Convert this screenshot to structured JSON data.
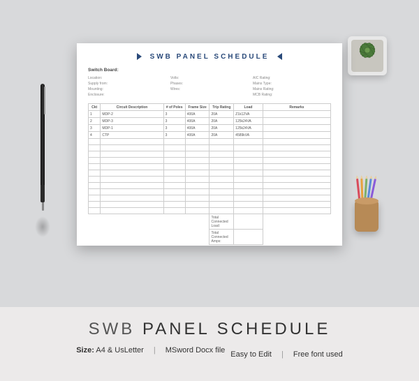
{
  "document": {
    "title": "SWB PANEL SCHEDULE",
    "switch_board_label": "Switch Board:",
    "meta": {
      "col1": [
        {
          "label": "Location:",
          "value": ""
        },
        {
          "label": "Supply from:",
          "value": ""
        },
        {
          "label": "Mounting:",
          "value": ""
        },
        {
          "label": "Enclosure:",
          "value": ""
        }
      ],
      "col2": [
        {
          "label": "Volts:",
          "value": ""
        },
        {
          "label": "Phases:",
          "value": ""
        },
        {
          "label": "Wires:",
          "value": ""
        }
      ],
      "col3": [
        {
          "label": "AIC Rating:",
          "value": ""
        },
        {
          "label": "Mains Type:",
          "value": ""
        },
        {
          "label": "Mains Rating:",
          "value": ""
        },
        {
          "label": "MCB Rating:",
          "value": ""
        }
      ]
    },
    "table": {
      "columns": [
        "Ckt",
        "Circuit Description",
        "# of Poles",
        "Frame Size",
        "Trip Rating",
        "Load",
        "Remarks"
      ],
      "col_classes": [
        "col-ckt",
        "col-desc",
        "col-poles",
        "col-frame",
        "col-trip",
        "col-load",
        "col-remarks"
      ],
      "rows": [
        [
          "1",
          "MDP-2",
          "3",
          "400A",
          "20A",
          "Z1k12VA",
          ""
        ],
        [
          "2",
          "MDP-3",
          "3",
          "400A",
          "20A",
          "125k24VA",
          ""
        ],
        [
          "3",
          "MDP-1",
          "3",
          "400A",
          "20A",
          "125k24VA",
          ""
        ],
        [
          "4",
          "CTP",
          "3",
          "400A",
          "20A",
          "4589kVA",
          ""
        ]
      ],
      "blank_row_count": 12,
      "totals": [
        "Total Connected Load:",
        "Total Connected Amps:"
      ]
    },
    "colors": {
      "title_color": "#2a4a7a",
      "border_color": "#cccccc",
      "text_muted": "#888888",
      "paper_bg": "#ffffff"
    }
  },
  "promo": {
    "title_thin": "SWB",
    "title_rest": "PANEL SCHEDULE",
    "specs": [
      {
        "label": "Size:",
        "value": "A4  & UsLetter"
      },
      {
        "label": "",
        "value": "MSword  Docx file"
      },
      {
        "label": "",
        "value": "Easy to Edit"
      },
      {
        "label": "",
        "value": "Free font used"
      }
    ],
    "colors": {
      "bg": "#eceaea",
      "text": "#333333",
      "title": "#444444"
    }
  },
  "scene": {
    "background": "#d8d9db",
    "pen_colors": {
      "barrel": "#222222",
      "clip": "#999999",
      "tip": "#888888"
    },
    "plant_green": "#4a7a3a",
    "pot_color": "#e8e8e8",
    "cup_color": "#b78a56",
    "pencil_colors": [
      "#d94b5b",
      "#e8a23c",
      "#7fb069",
      "#5b8bd9",
      "#8a5bd9"
    ]
  }
}
